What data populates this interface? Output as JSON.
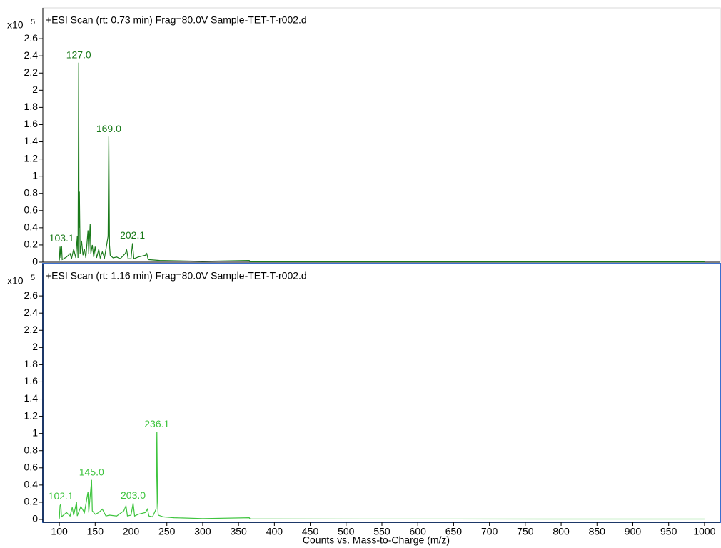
{
  "chart_data": [
    {
      "type": "line",
      "title": "+ESI Scan (rt: 0.73 min) Frag=80.0V Sample-TET-T-r002.d",
      "scale_label": "x10",
      "scale_exponent": "5",
      "border_color": "#d8d8d8",
      "xlim": [
        77,
        1022
      ],
      "ylim": [
        0,
        2.95
      ],
      "yticks": [
        0,
        0.2,
        0.4,
        0.6,
        0.8,
        1,
        1.2,
        1.4,
        1.6,
        1.8,
        2,
        2.2,
        2.4,
        2.6
      ],
      "series": [
        {
          "name": "+ESI Scan (rt: 0.73 min)",
          "color": "#1a7a1a",
          "x": [
            100,
            101,
            102,
            103.1,
            104,
            110,
            115,
            117,
            120,
            123,
            125,
            126,
            127,
            127.5,
            128,
            129,
            131,
            133,
            135,
            137,
            140,
            141,
            143,
            144,
            146,
            148,
            150,
            152,
            155,
            157,
            160,
            163,
            166,
            168,
            169,
            170,
            171,
            175,
            180,
            185,
            192,
            194,
            196,
            200,
            202.1,
            204,
            210,
            220,
            222,
            224,
            240,
            300,
            365,
            366,
            500,
            1000
          ],
          "values": [
            0.02,
            0.18,
            0.05,
            0.19,
            0.03,
            0.06,
            0.1,
            0.04,
            0.15,
            0.05,
            0.3,
            0.05,
            2.32,
            0.4,
            0.82,
            0.1,
            0.25,
            0.08,
            0.15,
            0.05,
            0.37,
            0.1,
            0.44,
            0.1,
            0.2,
            0.06,
            0.18,
            0.05,
            0.15,
            0.05,
            0.12,
            0.05,
            0.2,
            0.3,
            1.46,
            0.2,
            0.08,
            0.05,
            0.06,
            0.04,
            0.1,
            0.14,
            0.04,
            0.04,
            0.22,
            0.04,
            0.06,
            0.08,
            0.1,
            0.03,
            0.02,
            0.01,
            0.02,
            0.005,
            0.005,
            0.004
          ]
        }
      ],
      "peak_labels": [
        {
          "value": 103.1,
          "label": "103.1"
        },
        {
          "value": 127,
          "label": "127.0"
        },
        {
          "value": 169,
          "label": "169.0"
        },
        {
          "value": 202.1,
          "label": "202.1"
        }
      ]
    },
    {
      "type": "line",
      "title": "+ESI Scan (rt: 1.16 min) Frag=80.0V Sample-TET-T-r002.d",
      "scale_label": "x10",
      "scale_exponent": "5",
      "border_color": "#3a6fd0",
      "x_label": "Counts vs. Mass-to-Charge (m/z)",
      "xlim": [
        77,
        1022
      ],
      "ylim": [
        0,
        2.95
      ],
      "xticks": [
        100,
        150,
        200,
        250,
        300,
        350,
        400,
        450,
        500,
        550,
        600,
        650,
        700,
        750,
        800,
        850,
        900,
        950,
        1000
      ],
      "yticks": [
        0,
        0.2,
        0.4,
        0.6,
        0.8,
        1,
        1.2,
        1.4,
        1.6,
        1.8,
        2,
        2.2,
        2.4,
        2.6
      ],
      "series": [
        {
          "name": "+ESI Scan (rt: 1.16 min)",
          "color": "#3ec43e",
          "x": [
            100,
            101,
            102.1,
            103,
            110,
            115,
            118,
            120,
            124,
            125,
            130,
            135,
            140,
            141,
            145,
            146,
            150,
            155,
            160,
            165,
            170,
            180,
            190,
            193,
            195,
            200,
            203,
            205,
            210,
            220,
            223,
            225,
            230,
            235,
            236.1,
            237,
            238,
            245,
            260,
            300,
            365,
            366,
            1000
          ],
          "values": [
            0.01,
            0.16,
            0.18,
            0.03,
            0.08,
            0.04,
            0.14,
            0.05,
            0.2,
            0.04,
            0.15,
            0.08,
            0.32,
            0.08,
            0.46,
            0.1,
            0.06,
            0.08,
            0.12,
            0.04,
            0.05,
            0.04,
            0.1,
            0.16,
            0.04,
            0.05,
            0.19,
            0.04,
            0.06,
            0.08,
            0.12,
            0.04,
            0.03,
            0.12,
            1.02,
            0.2,
            0.05,
            0.03,
            0.02,
            0.01,
            0.02,
            0.005,
            0.004
          ]
        }
      ],
      "peak_labels": [
        {
          "value": 102.1,
          "label": "102.1"
        },
        {
          "value": 145,
          "label": "145.0"
        },
        {
          "value": 203,
          "label": "203.0"
        },
        {
          "value": 236.1,
          "label": "236.1"
        }
      ]
    }
  ]
}
